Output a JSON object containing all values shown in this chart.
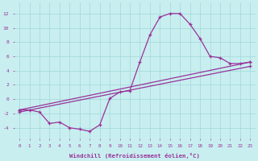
{
  "xlabel": "Windchill (Refroidissement éolien,°C)",
  "bg_color": "#c8eef0",
  "line_color": "#993399",
  "grid_color": "#a0d8d8",
  "xlim": [
    -0.5,
    23.5
  ],
  "ylim": [
    -5.5,
    13.5
  ],
  "xticks": [
    0,
    1,
    2,
    3,
    4,
    5,
    6,
    7,
    8,
    9,
    10,
    11,
    12,
    13,
    14,
    15,
    16,
    17,
    18,
    19,
    20,
    21,
    22,
    23
  ],
  "yticks": [
    -4,
    -2,
    0,
    2,
    4,
    6,
    8,
    10,
    12
  ],
  "line1_x": [
    0,
    1,
    2,
    3,
    4,
    5,
    6,
    7,
    8,
    9,
    10,
    11,
    12,
    13,
    14,
    15,
    16,
    17,
    18,
    19,
    20,
    21,
    22,
    23
  ],
  "line1_y": [
    -1.5,
    -1.5,
    -1.8,
    -3.4,
    -3.2,
    -4.0,
    -4.2,
    -4.5,
    -3.6,
    0.1,
    1.0,
    1.2,
    5.2,
    9.0,
    11.5,
    12.0,
    12.0,
    10.5,
    8.5,
    6.0,
    5.8,
    5.0,
    5.0,
    5.2
  ],
  "line2_x": [
    0,
    23
  ],
  "line2_y": [
    -1.5,
    5.2
  ],
  "line3_x": [
    0,
    23
  ],
  "line3_y": [
    -1.8,
    4.6
  ]
}
